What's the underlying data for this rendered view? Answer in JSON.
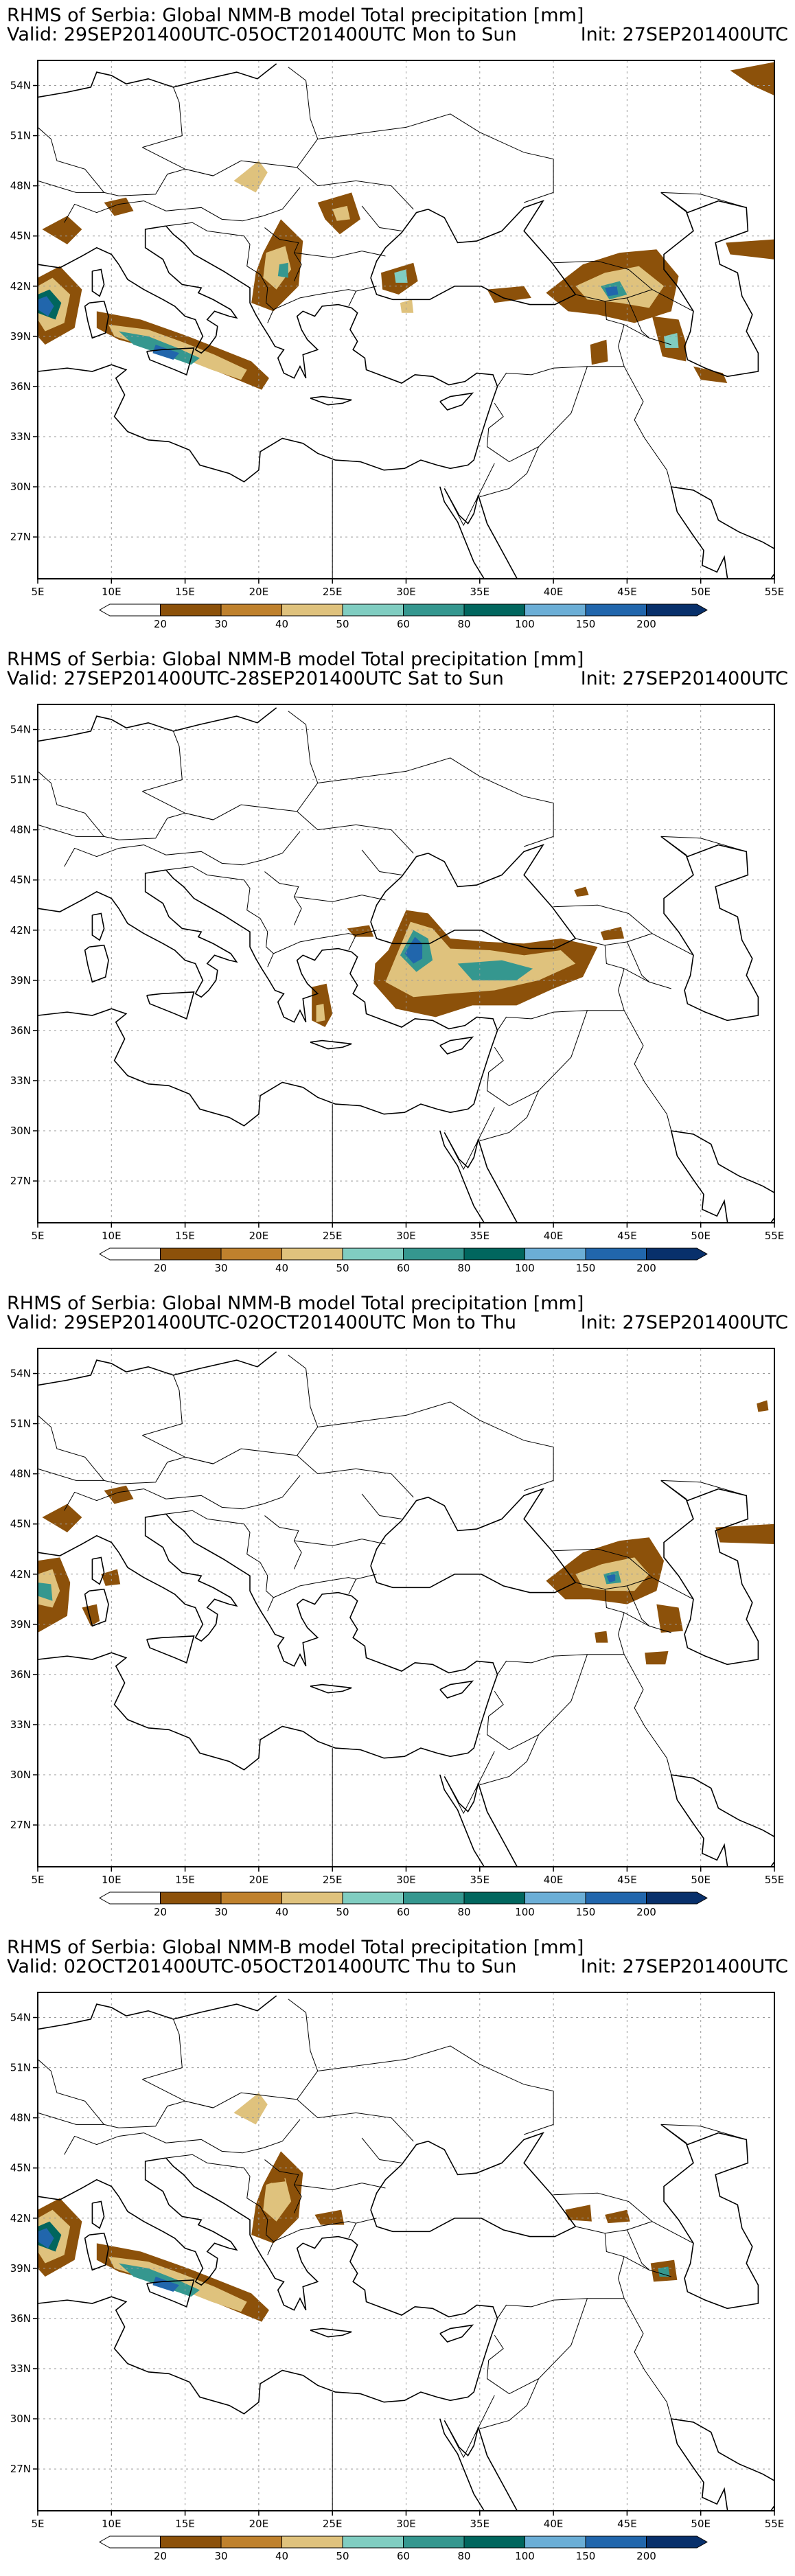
{
  "panels": [
    {
      "title": "RHMS of Serbia: Global NMM-B model Total precipitation [mm]",
      "valid": "Valid: 29SEP201400UTC-05OCT201400UTC Mon to Sun",
      "init": "Init: 27SEP201400UTC"
    },
    {
      "title": "RHMS of Serbia: Global NMM-B model Total precipitation [mm]",
      "valid": "Valid: 27SEP201400UTC-28SEP201400UTC Sat to Sun",
      "init": "Init: 27SEP201400UTC"
    },
    {
      "title": "RHMS of Serbia: Global NMM-B model Total precipitation [mm]",
      "valid": "Valid: 29SEP201400UTC-02OCT201400UTC Mon to Thu",
      "init": "Init: 27SEP201400UTC"
    },
    {
      "title": "RHMS of Serbia: Global NMM-B model Total precipitation [mm]",
      "valid": "Valid: 02OCT201400UTC-05OCT201400UTC Thu to Sun",
      "init": "Init: 27SEP201400UTC"
    }
  ],
  "map": {
    "lat_labels": [
      "54N",
      "51N",
      "48N",
      "45N",
      "42N",
      "39N",
      "36N",
      "33N",
      "30N",
      "27N"
    ],
    "lon_labels": [
      "5E",
      "10E",
      "15E",
      "20E",
      "25E",
      "30E",
      "35E",
      "40E",
      "45E",
      "50E",
      "55E"
    ]
  },
  "colorbar": {
    "labels": [
      "20",
      "30",
      "40",
      "50",
      "60",
      "80",
      "100",
      "150",
      "200"
    ],
    "colors": [
      "#ffffff",
      "#8c510a",
      "#bf812d",
      "#dfc27d",
      "#80cdc1",
      "#35978f",
      "#01665e",
      "#6baed6",
      "#2166ac",
      "#08306b"
    ]
  },
  "colors": {
    "c20": "#8c510a",
    "c30": "#bf812d",
    "c40": "#dfc27d",
    "c50": "#80cdc1",
    "c60": "#35978f",
    "c80": "#01665e",
    "c100": "#6baed6",
    "c150": "#2166ac"
  }
}
